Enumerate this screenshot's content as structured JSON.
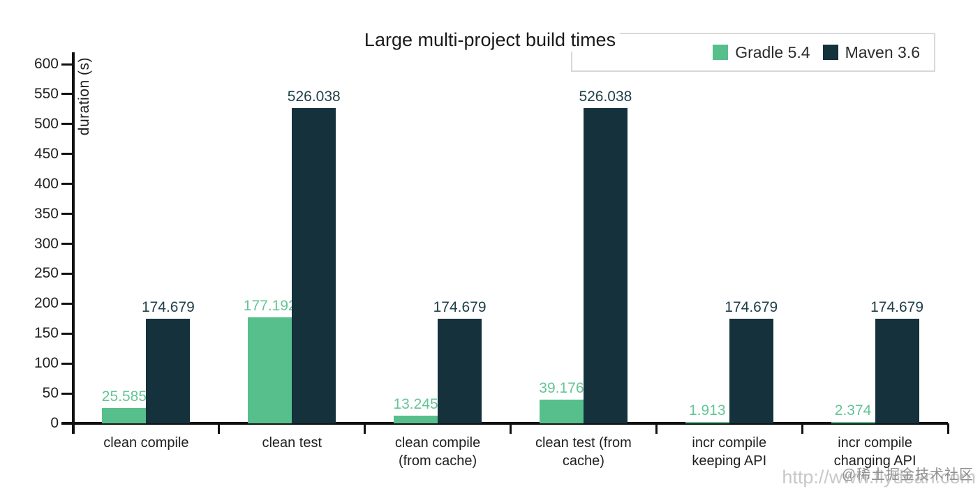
{
  "chart": {
    "title": "Large multi-project build times",
    "ylabel": "duration (s)",
    "watermark_community": "@稀土掘金技术社区",
    "watermark_url": "http://www.flydean.com"
  },
  "chart_data": {
    "type": "bar",
    "title": "Large multi-project build times",
    "xlabel": "",
    "ylabel": "duration (s)",
    "ylim": [
      0,
      600
    ],
    "ytick_step": 50,
    "grid": false,
    "legend_position": "top-right",
    "categories": [
      "clean compile",
      "clean test",
      "clean compile (from cache)",
      "clean test (from cache)",
      "incr compile keeping API",
      "incr compile changing API"
    ],
    "tick_labels": [
      "clean compile",
      "clean test",
      "clean compile\n(from cache)",
      "clean test (from\ncache)",
      "incr compile\nkeeping API",
      "incr compile\nchanging API"
    ],
    "series": [
      {
        "name": "Gradle 5.4",
        "color": "#57bf8c",
        "label_color": "#65c597",
        "values": [
          25.585,
          177.192,
          13.245,
          39.176,
          1.913,
          2.374
        ]
      },
      {
        "name": "Maven 3.6",
        "color": "#14313c",
        "label_color": "#204049",
        "values": [
          174.679,
          526.038,
          174.679,
          526.038,
          174.679,
          174.679
        ]
      }
    ]
  }
}
